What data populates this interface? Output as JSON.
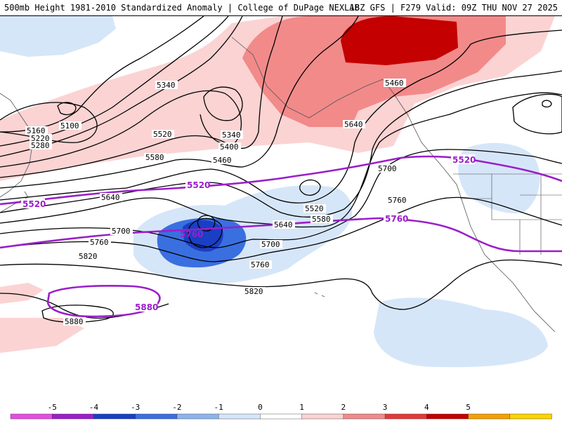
{
  "header": {
    "title_left": "500mb Height 1981-2010 Standardized Anomaly | College of DuPage NEXLAB",
    "title_right": "18Z GFS | F279 Valid: 09Z THU NOV 27 2025"
  },
  "contour_labels": [
    "5100",
    "5160",
    "5220",
    "5280",
    "5340",
    "5520",
    "5580",
    "5340",
    "5400",
    "5460",
    "5640",
    "5700",
    "5760",
    "5820",
    "5880",
    "5460",
    "5640",
    "5700",
    "5760",
    "5520",
    "5580",
    "5640",
    "5700",
    "5760",
    "5820"
  ],
  "purple_labels": [
    "5520",
    "5520",
    "5520",
    "5760",
    "5760",
    "5880"
  ],
  "colorbar": {
    "ticks": [
      "-5",
      "-4",
      "-3",
      "-2",
      "-1",
      "0",
      "1",
      "2",
      "3",
      "4",
      "5"
    ],
    "colors": [
      "#e64ee0",
      "#9b1fc9",
      "#1a3fc4",
      "#3a6fe0",
      "#8db4ee",
      "#d6e6f9",
      "#ffffff",
      "#fbd3d3",
      "#f28a8a",
      "#e23a3a",
      "#c40000",
      "#f6a000",
      "#ffd400"
    ]
  }
}
